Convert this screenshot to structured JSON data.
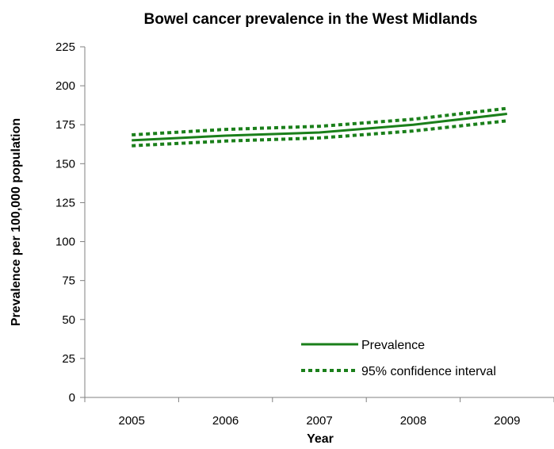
{
  "chart_data": {
    "type": "line",
    "title": "Bowel cancer prevalence in the West Midlands",
    "xlabel": "Year",
    "ylabel": "Prevalence per 100,000 population",
    "categories": [
      "2005",
      "2006",
      "2007",
      "2008",
      "2009"
    ],
    "ylim": [
      0,
      225
    ],
    "yticks": [
      0,
      25,
      50,
      75,
      100,
      125,
      150,
      175,
      200,
      225
    ],
    "grid": false,
    "legend_position": "bottom-right",
    "series": [
      {
        "name": "Prevalence",
        "style": "solid",
        "color": "#1a7f1a",
        "values": [
          165,
          168,
          170,
          175,
          182
        ]
      },
      {
        "name": "95% confidence interval",
        "style": "dotted",
        "color": "#1a7f1a",
        "values": [
          168.5,
          172,
          174,
          178.5,
          185.5
        ]
      },
      {
        "name": "",
        "style": "dotted",
        "color": "#1a7f1a",
        "values": [
          161.5,
          164.5,
          166.5,
          171,
          177.5
        ]
      }
    ]
  }
}
